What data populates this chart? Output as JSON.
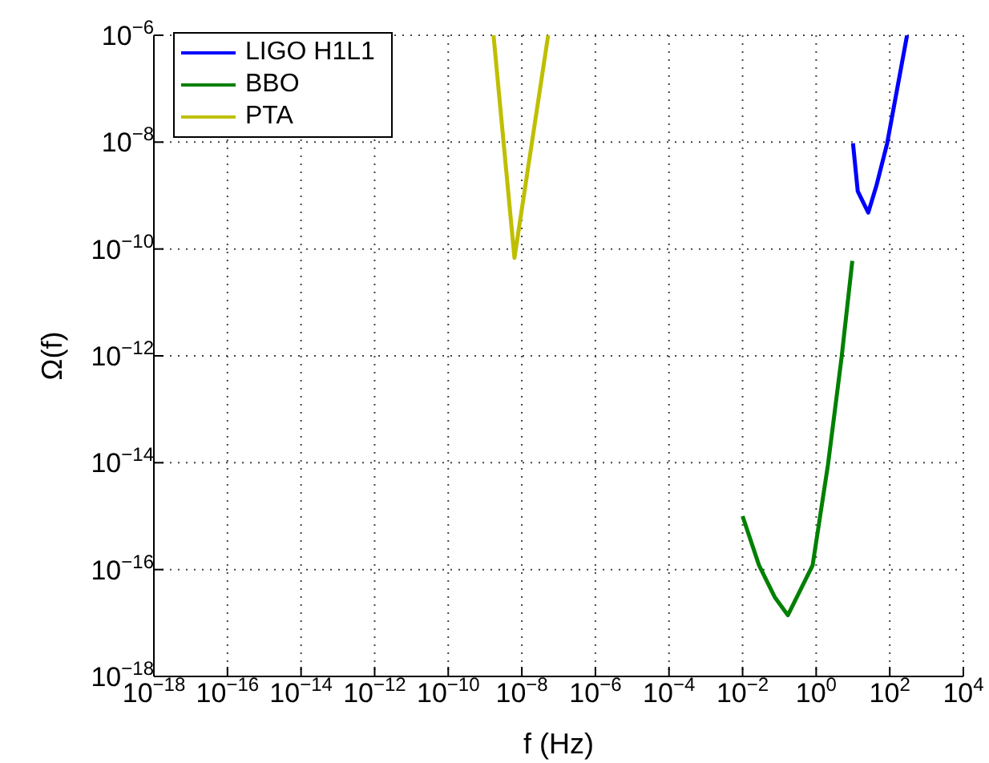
{
  "chart_data": {
    "type": "line",
    "xlabel": "f (Hz)",
    "ylabel": "Ω(f)",
    "log": "xy",
    "grid": true,
    "legend": "top left",
    "line_style": "solid",
    "marker": "none",
    "xlim": [
      1e-18,
      10000
    ],
    "ylim": [
      1e-18,
      1e-06
    ],
    "xticks": [
      {
        "value": 1e-18,
        "label": "10$^{−18}$"
      },
      {
        "value": 1e-16,
        "label": "10$^{−16}$"
      },
      {
        "value": 1e-14,
        "label": "10$^{−14}$"
      },
      {
        "value": 1e-12,
        "label": "10$^{−12}$"
      },
      {
        "value": 1e-10,
        "label": "10$^{−10}$"
      },
      {
        "value": 1e-08,
        "label": "10$^{−8}$"
      },
      {
        "value": 1e-06,
        "label": "10$^{−6}$"
      },
      {
        "value": 0.0001,
        "label": "10$^{−4}$"
      },
      {
        "value": 0.01,
        "label": "10$^{−2}$"
      },
      {
        "value": 1,
        "label": "10$^{0}$"
      },
      {
        "value": 100,
        "label": "10$^{2}$"
      },
      {
        "value": 10000,
        "label": "10$^{4}$"
      }
    ],
    "yticks": [
      {
        "value": 1e-18,
        "label": "10$^{−18}$"
      },
      {
        "value": 1e-16,
        "label": "10$^{−16}$"
      },
      {
        "value": 1e-14,
        "label": "10$^{−14}$"
      },
      {
        "value": 1e-12,
        "label": "10$^{−12}$"
      },
      {
        "value": 1e-10,
        "label": "10$^{−10}$"
      },
      {
        "value": 1e-08,
        "label": "10$^{−8}$"
      },
      {
        "value": 1e-06,
        "label": "10$^{−6}$"
      }
    ],
    "series": [
      {
        "name": "LIGO H1L1",
        "color": "#0000ff",
        "x": [
          10,
          13.5,
          26,
          43,
          85,
          295
        ],
        "values": [
          9.5e-09,
          1.2e-09,
          4.8e-10,
          1.5e-09,
          9.5e-09,
          1e-06
        ]
      },
      {
        "name": "BBO",
        "color": "#008000",
        "x": [
          0.01,
          0.028,
          0.076,
          0.17,
          0.8,
          2.1,
          4.9,
          9.6
        ],
        "values": [
          1e-15,
          1.2e-16,
          3e-17,
          1.4e-17,
          1.2e-16,
          9.3e-15,
          9.3e-13,
          6e-11
        ]
      },
      {
        "name": "PTA",
        "color": "#bfbf00",
        "x": [
          1.7e-09,
          6.3e-09,
          5.2e-08
        ],
        "values": [
          1e-06,
          6.8e-11,
          1e-06
        ]
      }
    ]
  }
}
